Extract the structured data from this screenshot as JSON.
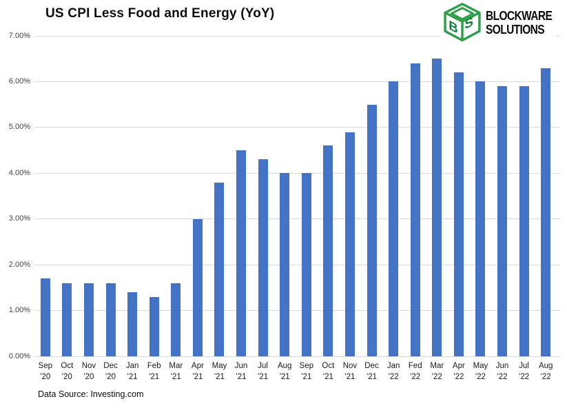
{
  "title": "US CPI Less Food and Energy (YoY)",
  "logo": {
    "name": "Blockware Solutions",
    "line1": "BLOCKWARE",
    "line2": "SOLUTIONS",
    "cube_green": "#2E9F49",
    "cube_green_dark": "#117F3B"
  },
  "footer": {
    "data_source": "Data Source: Investing.com"
  },
  "chart_data": {
    "type": "bar",
    "title": "US CPI Less Food and Energy (YoY)",
    "categories": [
      {
        "month": "Sep",
        "year": "'20"
      },
      {
        "month": "Oct",
        "year": "'20"
      },
      {
        "month": "Nov",
        "year": "'20"
      },
      {
        "month": "Dec",
        "year": "'20"
      },
      {
        "month": "Jan",
        "year": "'21"
      },
      {
        "month": "Feb",
        "year": "'21"
      },
      {
        "month": "Mar",
        "year": "'21"
      },
      {
        "month": "Apr",
        "year": "'21"
      },
      {
        "month": "May",
        "year": "'21"
      },
      {
        "month": "Jun",
        "year": "'21"
      },
      {
        "month": "Jul",
        "year": "'21"
      },
      {
        "month": "Aug",
        "year": "'21"
      },
      {
        "month": "Sep",
        "year": "'21"
      },
      {
        "month": "Oct",
        "year": "'21"
      },
      {
        "month": "Nov",
        "year": "'21"
      },
      {
        "month": "Dec",
        "year": "'21"
      },
      {
        "month": "Jan",
        "year": "'22"
      },
      {
        "month": "Fed",
        "year": "'22"
      },
      {
        "month": "Mar",
        "year": "'22"
      },
      {
        "month": "Apr",
        "year": "'22"
      },
      {
        "month": "May",
        "year": "'22"
      },
      {
        "month": "Jun",
        "year": "'22"
      },
      {
        "month": "Jul",
        "year": "'22"
      },
      {
        "month": "Aug",
        "year": "'22"
      }
    ],
    "values": [
      1.7,
      1.6,
      1.6,
      1.6,
      1.4,
      1.3,
      1.6,
      3.0,
      3.8,
      4.5,
      4.3,
      4.0,
      4.0,
      4.6,
      4.9,
      5.5,
      6.0,
      6.4,
      6.5,
      6.2,
      6.0,
      5.9,
      5.9,
      6.3
    ],
    "xlabel": "",
    "ylabel": "",
    "ylim": [
      0,
      7
    ],
    "ytick_step": 1,
    "ytick_labels": [
      "0.00%",
      "1.00%",
      "2.00%",
      "3.00%",
      "4.00%",
      "5.00%",
      "6.00%",
      "7.00%"
    ],
    "grid": true,
    "legend": false,
    "bar_color": "#4472C4",
    "gridline_color": "#D9D9D9",
    "axis_label_color": "#3f3f3f"
  }
}
